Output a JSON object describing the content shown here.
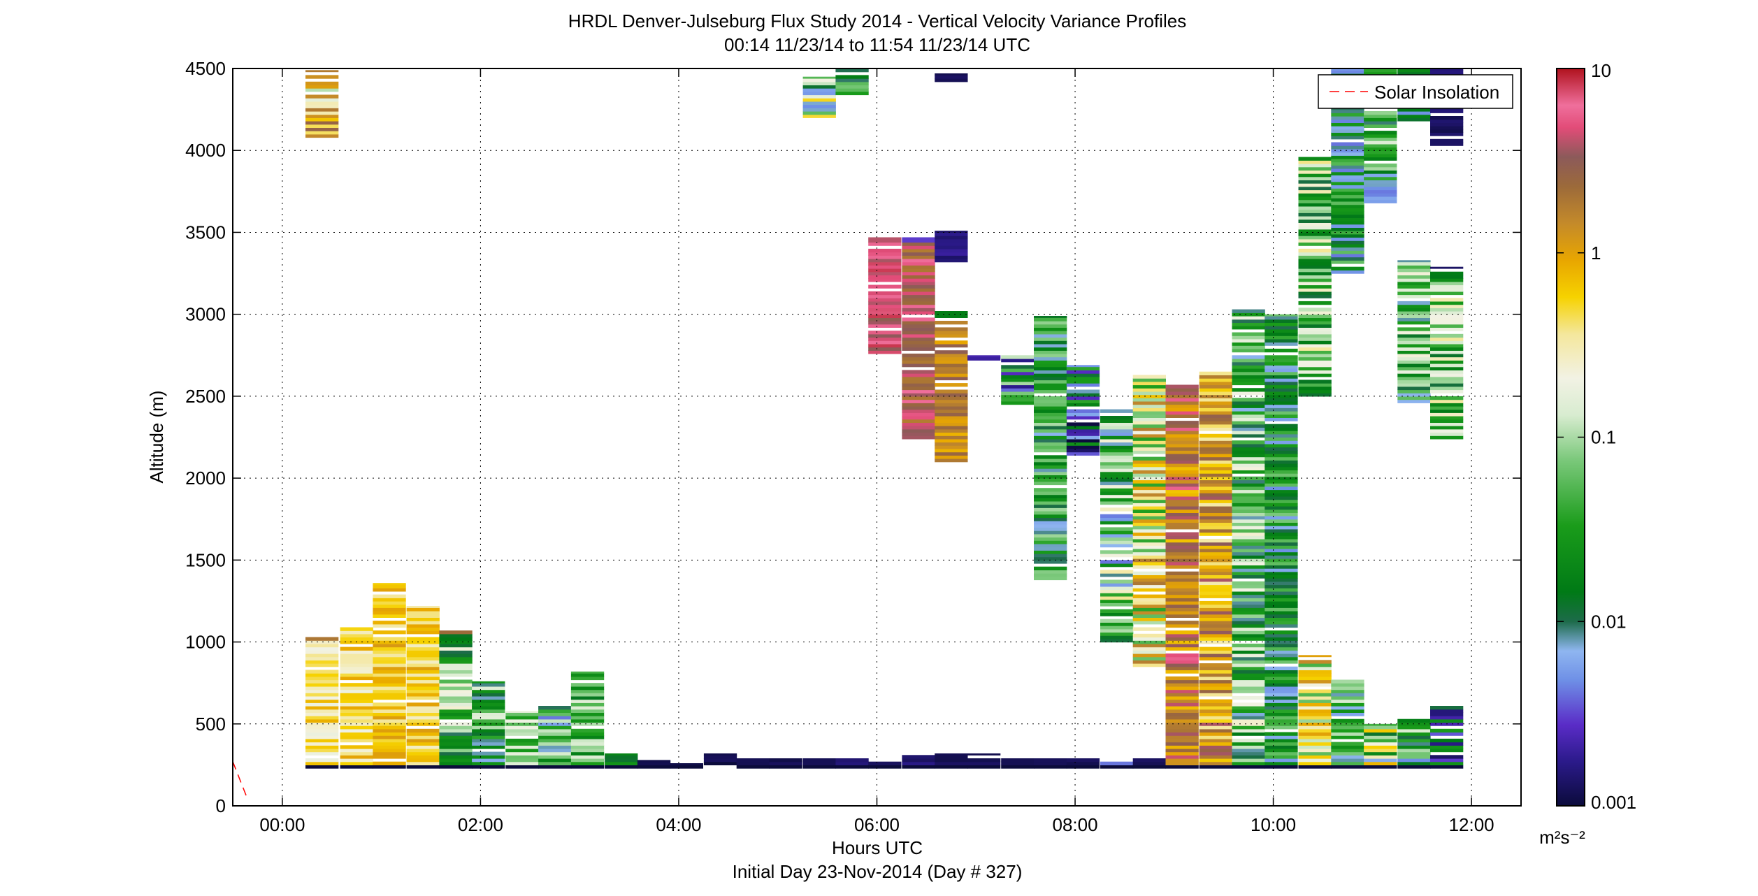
{
  "chart_data": {
    "type": "heatmap",
    "title": "HRDL Denver-Julseburg Flux Study 2014 - Vertical Velocity Variance Profiles",
    "subtitle": "00:14 11/23/14 to 11:54 11/23/14  UTC",
    "xlabel": "Hours UTC",
    "xlabel2": "Initial Day 23-Nov-2014 (Day # 327)",
    "ylabel": "Altitude (m)",
    "xlim": [
      -0.5,
      12.5
    ],
    "ylim": [
      0,
      4500
    ],
    "x_ticks": [
      0,
      2,
      4,
      6,
      8,
      10,
      12
    ],
    "x_tick_labels": [
      "00:00",
      "02:00",
      "04:00",
      "06:00",
      "08:00",
      "10:00",
      "12:00"
    ],
    "y_ticks": [
      0,
      500,
      1000,
      1500,
      2000,
      2500,
      3000,
      3500,
      4000,
      4500
    ],
    "y_tick_labels": [
      "0",
      "500",
      "1000",
      "1500",
      "2000",
      "2500",
      "3000",
      "3500",
      "4000",
      "4500"
    ],
    "grid": true,
    "legend": {
      "placement": "top-right",
      "entries": [
        "Solar Insolation"
      ]
    },
    "colorbar": {
      "scale": "log",
      "range": [
        0.001,
        10
      ],
      "ticks": [
        0.001,
        0.01,
        0.1,
        1,
        10
      ],
      "tick_labels": [
        "0.001",
        "0.01",
        "0.1",
        "1",
        "10"
      ],
      "units": "m²s⁻²",
      "color_stops": [
        [
          0.0,
          "#0b0b3b"
        ],
        [
          0.06,
          "#2b1a8a"
        ],
        [
          0.11,
          "#5a2cc7"
        ],
        [
          0.17,
          "#6e8fe6"
        ],
        [
          0.21,
          "#8fb6f0"
        ],
        [
          0.25,
          "#1d6b4a"
        ],
        [
          0.29,
          "#007a16"
        ],
        [
          0.38,
          "#1a9c1a"
        ],
        [
          0.47,
          "#7cc97c"
        ],
        [
          0.53,
          "#d8ecd0"
        ],
        [
          0.58,
          "#f2f2e4"
        ],
        [
          0.64,
          "#f4e79c"
        ],
        [
          0.69,
          "#f6d200"
        ],
        [
          0.74,
          "#e8a600"
        ],
        [
          0.79,
          "#c48a2a"
        ],
        [
          0.84,
          "#9c6a3a"
        ],
        [
          0.88,
          "#8c5a5a"
        ],
        [
          0.92,
          "#e24c78"
        ],
        [
          0.95,
          "#ef6f9c"
        ],
        [
          1.0,
          "#b0121e"
        ]
      ]
    },
    "solar_insolation": {
      "x": [
        -0.5,
        -0.35
      ],
      "y": [
        270,
        40
      ],
      "color": "#ff0000"
    },
    "profiles": [
      {
        "t": 0.4,
        "zmin": 230,
        "zmax": 1040,
        "c": 0.65,
        "amp": 0.09,
        "top_c": 0.82
      },
      {
        "t": 0.4,
        "zmin": 4080,
        "zmax": 4490,
        "c": 0.7,
        "amp": 0.2
      },
      {
        "t": 0.75,
        "zmin": 230,
        "zmax": 1090,
        "c": 0.66,
        "amp": 0.09
      },
      {
        "t": 1.08,
        "zmin": 230,
        "zmax": 1360,
        "c": 0.7,
        "amp": 0.07
      },
      {
        "t": 1.42,
        "zmin": 230,
        "zmax": 1220,
        "c": 0.68,
        "amp": 0.08
      },
      {
        "t": 1.75,
        "zmin": 230,
        "zmax": 1090,
        "c": 0.42,
        "amp": 0.18,
        "top_c": 0.84
      },
      {
        "t": 2.08,
        "zmin": 230,
        "zmax": 760,
        "c": 0.38,
        "amp": 0.18
      },
      {
        "t": 2.42,
        "zmin": 230,
        "zmax": 580,
        "c": 0.45,
        "amp": 0.15
      },
      {
        "t": 2.75,
        "zmin": 230,
        "zmax": 610,
        "c": 0.35,
        "amp": 0.2
      },
      {
        "t": 3.08,
        "zmin": 230,
        "zmax": 820,
        "c": 0.42,
        "amp": 0.14
      },
      {
        "t": 3.42,
        "zmin": 230,
        "zmax": 320,
        "c": 0.3,
        "amp": 0.1
      },
      {
        "t": 3.75,
        "zmin": 230,
        "zmax": 280,
        "c": 0.02,
        "amp": 0.01
      },
      {
        "t": 4.08,
        "zmin": 230,
        "zmax": 260,
        "c": 0.02,
        "amp": 0.01
      },
      {
        "t": 4.42,
        "zmin": 250,
        "zmax": 320,
        "c": 0.02,
        "amp": 0.01
      },
      {
        "t": 4.75,
        "zmin": 230,
        "zmax": 310,
        "c": 0.02,
        "amp": 0.01
      },
      {
        "t": 5.08,
        "zmin": 230,
        "zmax": 290,
        "c": 0.02,
        "amp": 0.01
      },
      {
        "t": 5.42,
        "zmin": 230,
        "zmax": 290,
        "c": 0.02,
        "amp": 0.01
      },
      {
        "t": 5.42,
        "zmin": 4200,
        "zmax": 4450,
        "c": 0.4,
        "amp": 0.3
      },
      {
        "t": 5.75,
        "zmin": 230,
        "zmax": 290,
        "c": 0.06,
        "amp": 0.02
      },
      {
        "t": 5.75,
        "zmin": 4340,
        "zmax": 4500,
        "c": 0.35,
        "amp": 0.15
      },
      {
        "t": 6.08,
        "zmin": 230,
        "zmax": 290,
        "c": 0.02,
        "amp": 0.01
      },
      {
        "t": 6.08,
        "zmin": 2760,
        "zmax": 3470,
        "c": 0.93,
        "amp": 0.06,
        "top_c": 0.9
      },
      {
        "t": 6.42,
        "zmin": 230,
        "zmax": 310,
        "c": 0.04,
        "amp": 0.02
      },
      {
        "t": 6.42,
        "zmin": 2240,
        "zmax": 3470,
        "c": 0.88,
        "amp": 0.07,
        "top_c": 0.12
      },
      {
        "t": 6.75,
        "zmin": 230,
        "zmax": 320,
        "c": 0.02,
        "amp": 0.01
      },
      {
        "t": 6.75,
        "zmin": 2100,
        "zmax": 3020,
        "c": 0.8,
        "amp": 0.08,
        "top_c": 0.3
      },
      {
        "t": 6.75,
        "zmin": 3320,
        "zmax": 3510,
        "c": 0.04,
        "amp": 0.04
      },
      {
        "t": 6.75,
        "zmin": 4420,
        "zmax": 4470,
        "c": 0.02,
        "amp": 0.01
      },
      {
        "t": 7.08,
        "zmin": 230,
        "zmax": 320,
        "c": 0.02,
        "amp": 0.01
      },
      {
        "t": 7.08,
        "zmin": 2720,
        "zmax": 2750,
        "c": 0.08,
        "amp": 0.01
      },
      {
        "t": 7.42,
        "zmin": 230,
        "zmax": 290,
        "c": 0.02,
        "amp": 0.01
      },
      {
        "t": 7.42,
        "zmin": 2450,
        "zmax": 2750,
        "c": 0.3,
        "amp": 0.25
      },
      {
        "t": 7.75,
        "zmin": 230,
        "zmax": 290,
        "c": 0.02,
        "amp": 0.01
      },
      {
        "t": 7.75,
        "zmin": 1380,
        "zmax": 2990,
        "c": 0.35,
        "amp": 0.15
      },
      {
        "t": 8.08,
        "zmin": 230,
        "zmax": 290,
        "c": 0.02,
        "amp": 0.01
      },
      {
        "t": 8.08,
        "zmin": 2140,
        "zmax": 2690,
        "c": 0.2,
        "amp": 0.22
      },
      {
        "t": 8.42,
        "zmin": 230,
        "zmax": 290,
        "c": 0.1,
        "amp": 0.08
      },
      {
        "t": 8.42,
        "zmin": 1000,
        "zmax": 2420,
        "c": 0.4,
        "amp": 0.25
      },
      {
        "t": 8.75,
        "zmin": 230,
        "zmax": 290,
        "c": 0.02,
        "amp": 0.01
      },
      {
        "t": 8.75,
        "zmin": 850,
        "zmax": 2630,
        "c": 0.6,
        "amp": 0.22
      },
      {
        "t": 9.08,
        "zmin": 230,
        "zmax": 2570,
        "c": 0.82,
        "amp": 0.12
      },
      {
        "t": 9.42,
        "zmin": 230,
        "zmax": 2650,
        "c": 0.76,
        "amp": 0.14
      },
      {
        "t": 9.75,
        "zmin": 230,
        "zmax": 3030,
        "c": 0.4,
        "amp": 0.2
      },
      {
        "t": 10.08,
        "zmin": 230,
        "zmax": 3000,
        "c": 0.32,
        "amp": 0.15
      },
      {
        "t": 10.42,
        "zmin": 230,
        "zmax": 920,
        "c": 0.6,
        "amp": 0.2
      },
      {
        "t": 10.42,
        "zmin": 2500,
        "zmax": 3960,
        "c": 0.45,
        "amp": 0.2
      },
      {
        "t": 10.75,
        "zmin": 230,
        "zmax": 770,
        "c": 0.35,
        "amp": 0.2
      },
      {
        "t": 10.75,
        "zmin": 3250,
        "zmax": 4500,
        "c": 0.3,
        "amp": 0.15
      },
      {
        "t": 11.08,
        "zmin": 230,
        "zmax": 500,
        "c": 0.5,
        "amp": 0.3
      },
      {
        "t": 11.08,
        "zmin": 3680,
        "zmax": 4500,
        "c": 0.35,
        "amp": 0.2
      },
      {
        "t": 11.42,
        "zmin": 230,
        "zmax": 530,
        "c": 0.35,
        "amp": 0.2
      },
      {
        "t": 11.42,
        "zmin": 2460,
        "zmax": 3330,
        "c": 0.4,
        "amp": 0.2
      },
      {
        "t": 11.42,
        "zmin": 4180,
        "zmax": 4500,
        "c": 0.35,
        "amp": 0.2
      },
      {
        "t": 11.75,
        "zmin": 230,
        "zmax": 620,
        "c": 0.2,
        "amp": 0.2
      },
      {
        "t": 11.75,
        "zmin": 2240,
        "zmax": 3290,
        "c": 0.45,
        "amp": 0.2,
        "top_c": 0.03
      },
      {
        "t": 11.75,
        "zmin": 4030,
        "zmax": 4500,
        "c": 0.03,
        "amp": 0.02
      }
    ]
  }
}
